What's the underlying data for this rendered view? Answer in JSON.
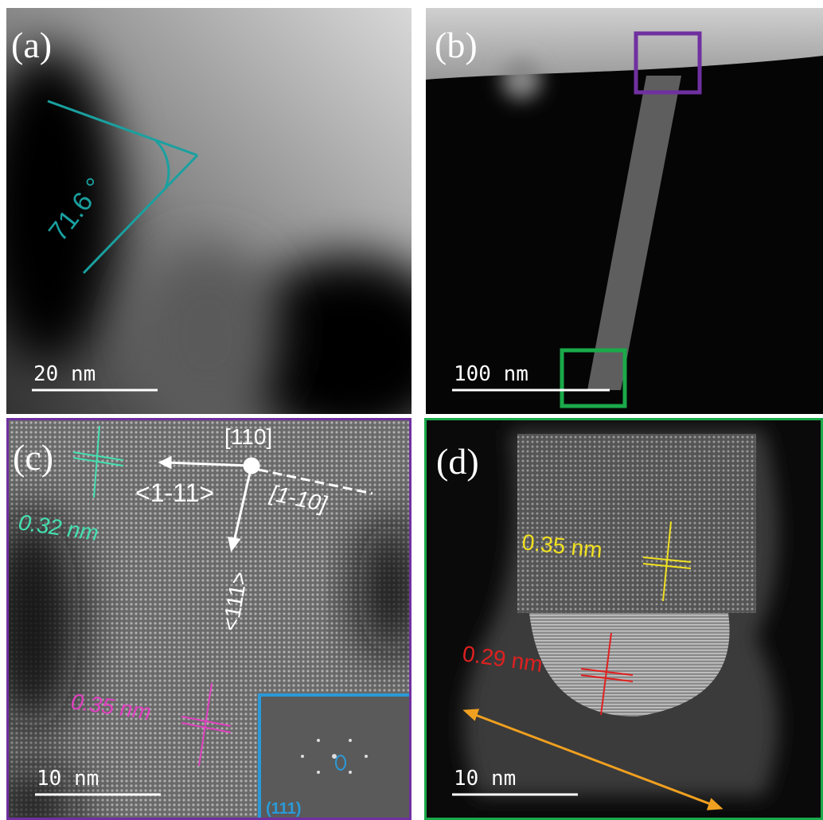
{
  "panels": [
    {
      "label": "(a)",
      "scale_bar": "20 nm",
      "angle": "71.6 °"
    },
    {
      "label": "(b)",
      "scale_bar": "100 nm"
    },
    {
      "label": "(c)",
      "scale_bar": "10 nm",
      "zone_axis": "[110]",
      "directions": [
        "<1-11>",
        "[1-10]",
        "<111>"
      ],
      "spacings": [
        "0.32 nm",
        "0.35 nm"
      ],
      "inset_label": "(111)"
    },
    {
      "label": "(d)",
      "scale_bar": "10 nm",
      "spacings": [
        "0.35 nm",
        "0.29 nm"
      ]
    }
  ]
}
